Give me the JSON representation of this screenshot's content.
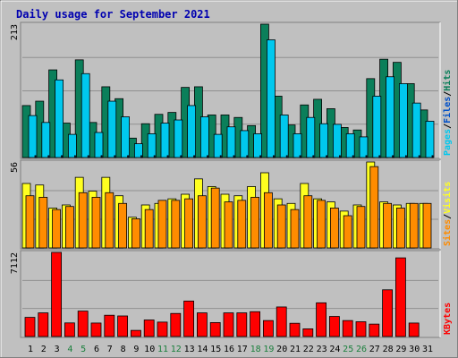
{
  "title": "Daily usage for September 2021",
  "colors": {
    "background": "#c0c0c0",
    "plot": "#c0c0c0",
    "title": "#0000b0",
    "hits": "#0b7f5a",
    "files": "#00c8ee",
    "pages": "#0050c8",
    "visits": "#ffff20",
    "sites": "#ff8c00",
    "kbytes": "#ff0000",
    "weekend_day": "#1a7f3c",
    "weekday": "#000000"
  },
  "right_labels": {
    "hits_panel": [
      "Pages",
      "/",
      "Files",
      "/",
      "Hits"
    ],
    "visits_panel": [
      "Sites",
      "/",
      "Visits"
    ],
    "kbytes_panel": [
      "KBytes"
    ]
  },
  "chart_data": [
    {
      "type": "bar",
      "panel": "hits",
      "y_max_label": "213",
      "ylim": [
        0,
        213
      ],
      "categories": [
        "1",
        "2",
        "3",
        "4",
        "5",
        "6",
        "7",
        "8",
        "9",
        "10",
        "11",
        "12",
        "13",
        "14",
        "15",
        "16",
        "17",
        "18",
        "19",
        "20",
        "21",
        "22",
        "23",
        "24",
        "25",
        "26",
        "27",
        "28",
        "29",
        "30",
        "31"
      ],
      "weekend_days": [
        "4",
        "5",
        "11",
        "12",
        "18",
        "19",
        "25",
        "26"
      ],
      "series": [
        {
          "name": "Hits",
          "values": [
            83,
            90,
            140,
            55,
            156,
            56,
            113,
            94,
            31,
            54,
            69,
            72,
            112,
            113,
            68,
            68,
            64,
            51,
            213,
            98,
            52,
            84,
            93,
            78,
            48,
            44,
            126,
            157,
            152,
            118,
            76
          ]
        },
        {
          "name": "Files",
          "values": [
            67,
            56,
            124,
            37,
            134,
            40,
            90,
            65,
            22,
            38,
            55,
            60,
            83,
            65,
            37,
            49,
            43,
            38,
            188,
            68,
            38,
            64,
            54,
            53,
            38,
            33,
            98,
            129,
            118,
            87,
            58
          ]
        },
        {
          "name": "Pages",
          "values": [
            3,
            3,
            3,
            3,
            3,
            3,
            3,
            3,
            3,
            3,
            3,
            3,
            3,
            3,
            3,
            3,
            3,
            3,
            3,
            3,
            3,
            3,
            3,
            3,
            3,
            3,
            3,
            3,
            3,
            3,
            3
          ]
        }
      ]
    },
    {
      "type": "bar",
      "panel": "visits",
      "y_max_label": "56",
      "ylim": [
        0,
        56
      ],
      "categories": [
        "1",
        "2",
        "3",
        "4",
        "5",
        "6",
        "7",
        "8",
        "9",
        "10",
        "11",
        "12",
        "13",
        "14",
        "15",
        "16",
        "17",
        "18",
        "19",
        "20",
        "21",
        "22",
        "23",
        "24",
        "25",
        "26",
        "27",
        "28",
        "29",
        "30",
        "31"
      ],
      "series": [
        {
          "name": "Visits",
          "values": [
            42,
            41,
            26,
            28,
            46,
            37,
            46,
            34,
            20,
            28,
            29,
            32,
            35,
            45,
            40,
            35,
            34,
            40,
            49,
            32,
            29,
            42,
            32,
            30,
            24,
            28,
            56,
            30,
            28,
            29,
            29
          ]
        },
        {
          "name": "Sites",
          "values": [
            34,
            33,
            25,
            27,
            36,
            33,
            36,
            29,
            19,
            25,
            31,
            31,
            32,
            34,
            39,
            30,
            31,
            33,
            36,
            28,
            25,
            34,
            31,
            26,
            21,
            27,
            53,
            29,
            26,
            29,
            29
          ]
        }
      ]
    },
    {
      "type": "bar",
      "panel": "kbytes",
      "y_max_label": "7112",
      "ylim": [
        0,
        7112
      ],
      "categories": [
        "1",
        "2",
        "3",
        "4",
        "5",
        "6",
        "7",
        "8",
        "9",
        "10",
        "11",
        "12",
        "13",
        "14",
        "15",
        "16",
        "17",
        "18",
        "19",
        "20",
        "21",
        "22",
        "23",
        "24",
        "25",
        "26",
        "27",
        "28",
        "29",
        "30",
        "31"
      ],
      "series": [
        {
          "name": "KBytes",
          "values": [
            1620,
            2000,
            7112,
            1150,
            2150,
            1140,
            1800,
            1740,
            520,
            1400,
            1220,
            1950,
            3000,
            2000,
            1180,
            2000,
            2000,
            2100,
            1350,
            2500,
            1120,
            650,
            2850,
            1700,
            1350,
            1250,
            1050,
            3950,
            6650,
            1140,
            0
          ]
        }
      ]
    }
  ]
}
